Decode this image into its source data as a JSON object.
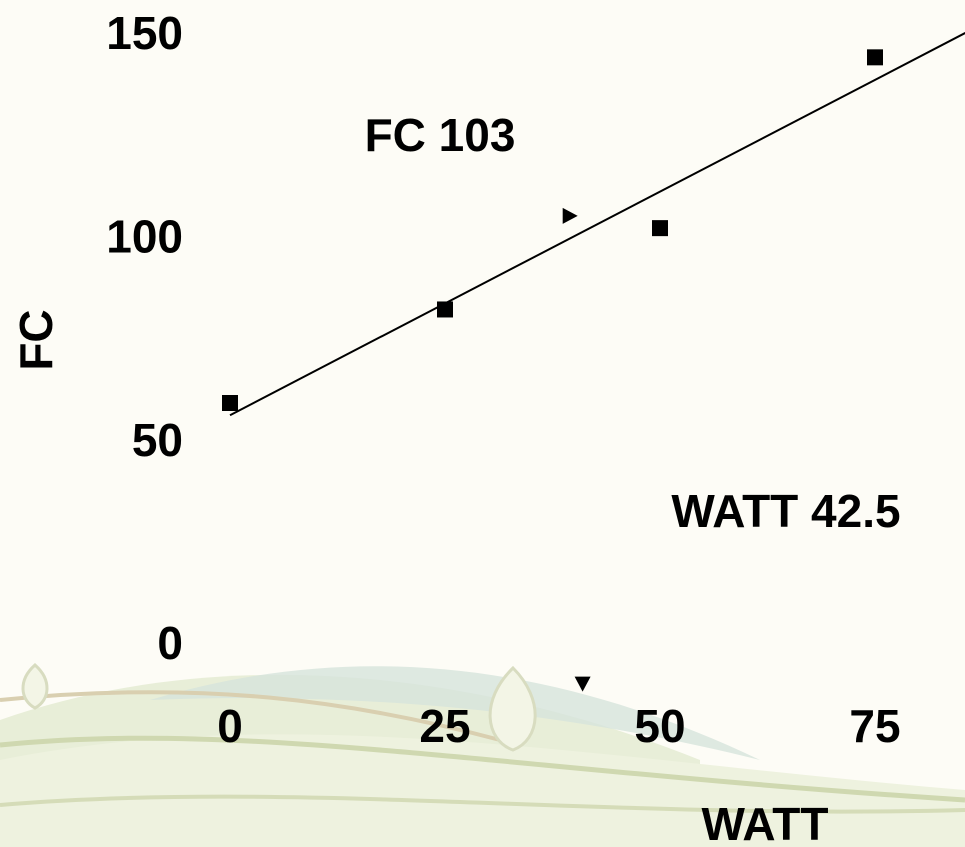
{
  "chart_data": {
    "type": "scatter",
    "x_label": "WATT",
    "y_label": "FC",
    "annotations": [
      "FC 103",
      "WATT 42.5"
    ],
    "series": [
      {
        "x": [
          0,
          25,
          50,
          75
        ],
        "values": [
          60,
          83,
          103,
          145
        ],
        "color": "#000000"
      }
    ],
    "trendline": {
      "x": [
        0,
        85.5
      ],
      "values": [
        57,
        151
      ],
      "color": "#000000"
    },
    "pointers": {
      "x": [
        39.5,
        41
      ],
      "values": [
        106,
        -9
      ]
    },
    "xlim": [
      0,
      75
    ],
    "ylim": [
      0,
      150
    ],
    "xticks": [
      0,
      25,
      50,
      75
    ],
    "yticks": [
      0,
      50,
      100,
      150
    ]
  }
}
